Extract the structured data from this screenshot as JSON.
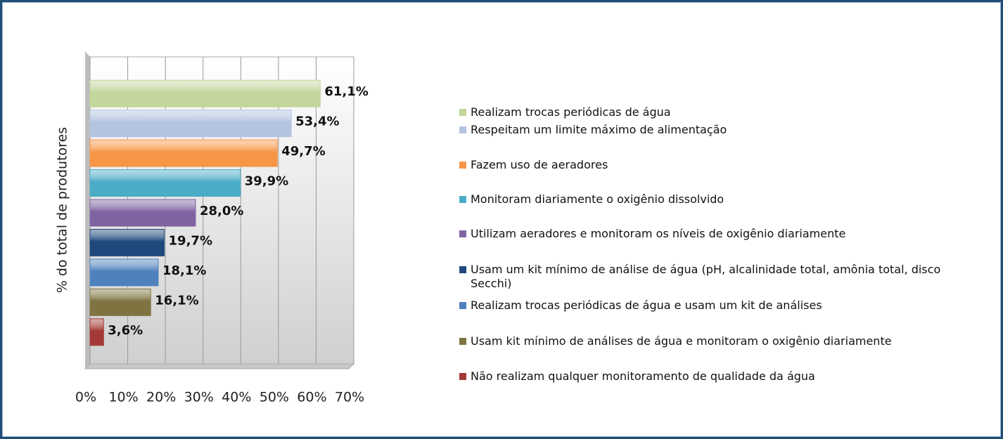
{
  "chart_data": {
    "type": "bar",
    "orientation": "horizontal",
    "y_label": "% do total de produtores",
    "categories": [
      "Realizam trocas periódicas de água",
      "Respeitam um limite máximo de alimentação",
      "Fazem uso de aeradores",
      "Monitoram diariamente o oxigênio dissolvido",
      "Utilizam aeradores e monitoram os níveis de oxigênio diariamente",
      "Usam um kit mínimo de análise de água (pH, alcalinidade total, amônia total, disco Secchi)",
      "Realizam trocas periódicas de água e usam um kit de análises",
      "Usam kit mínimo de análises de água e monitoram o oxigênio diariamente",
      " Não realizam qualquer monitoramento de qualidade da água"
    ],
    "values": [
      61.1,
      53.4,
      49.7,
      39.9,
      28.0,
      19.7,
      18.1,
      16.1,
      3.6
    ],
    "value_labels": [
      "61,1%",
      "53,4%",
      "49,7%",
      "39,9%",
      "28,0%",
      "19,7%",
      "18,1%",
      "16,1%",
      "3,6%"
    ],
    "colors": [
      "#c3d69b",
      "#b3c3e0",
      "#f79646",
      "#4bacc6",
      "#8064a2",
      "#1f497d",
      "#4f81bd",
      "#7f7441",
      "#a33a36"
    ],
    "xlim": [
      0,
      70
    ],
    "xticks": [
      {
        "value": 0,
        "label": "0%"
      },
      {
        "value": 10,
        "label": "10%"
      },
      {
        "value": 20,
        "label": "20%"
      },
      {
        "value": 30,
        "label": "30%"
      },
      {
        "value": 40,
        "label": "40%"
      },
      {
        "value": 50,
        "label": "50%"
      },
      {
        "value": 60,
        "label": "60%"
      },
      {
        "value": 70,
        "label": "70%"
      }
    ],
    "grid": true
  }
}
